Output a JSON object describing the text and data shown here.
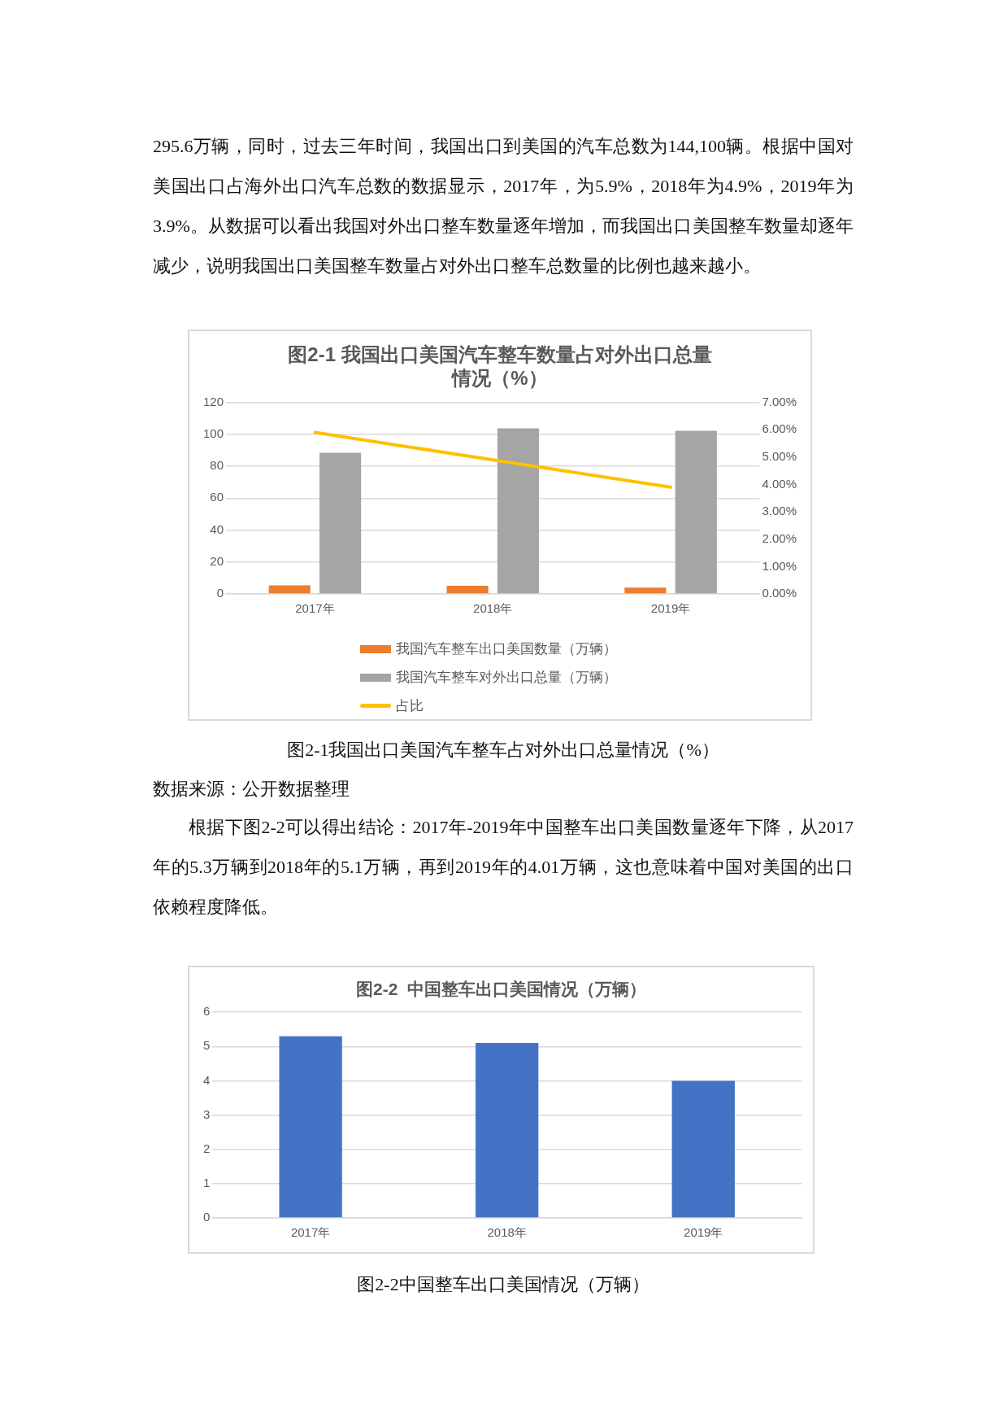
{
  "chart_data": [
    {
      "type": "bar",
      "title": "图2-1 我国出口美国汽车整车数量占对外出口总量情况（%）",
      "categories": [
        "2017年",
        "2018年",
        "2019年"
      ],
      "series": [
        {
          "name": "我国汽车整车出口美国数量（万辆）",
          "color": "#ed7d31",
          "values": [
            5.3,
            5.1,
            4.0
          ]
        },
        {
          "name": "我国汽车整车对外出口总量（万辆）",
          "color": "#a5a5a5",
          "values": [
            88.5,
            103.8,
            102.2
          ]
        },
        {
          "name": "占比",
          "type": "line",
          "axis": "y2",
          "color": "#ffc000",
          "values": [
            5.9,
            4.9,
            3.9
          ]
        }
      ],
      "ylim": [
        0,
        120
      ],
      "yticks": [
        0,
        20,
        40,
        60,
        80,
        100,
        120
      ],
      "y2lim": [
        0,
        7
      ],
      "y2ticks": [
        {
          "value": 0,
          "label": "0.00%"
        },
        {
          "value": 1,
          "label": "1.00%"
        },
        {
          "value": 2,
          "label": "2.00%"
        },
        {
          "value": 3,
          "label": "3.00%"
        },
        {
          "value": 4,
          "label": "4.00%"
        },
        {
          "value": 5,
          "label": "5.00%"
        },
        {
          "value": 6,
          "label": "6.00%"
        },
        {
          "value": 7,
          "label": "7.00%"
        }
      ],
      "grid": "y",
      "legend": "bottom",
      "marker": "none",
      "line_style": "solid",
      "annotations": [
        "295.6万辆，同时，过去三年时间，我国出口到美国的汽车总数为144,100辆。根据中国对美国出口占海外出口汽车总数的数据显示，2017年，为5.9%，2018年为4.9%，2019年为3.9%。从数据可以看出我国对外出口整车数量逐年增加，而我国出口美国整车数量却逐年减少，说明我国出口美国整车数量占对外出口整车总数量的比例也越来越小。",
        "图2-1我国出口美国汽车整车占对外出口总量情况（%）",
        "数据来源：公开数据整理",
        "根据下图2-2可以得出结论：2017年-2019年中国整车出口美国数量逐年下降，从2017年的5.3万辆到2018年的5.1万辆，再到2019年的4.01万辆，这也意味着中国对美国的出口依赖程度降低。"
      ]
    },
    {
      "type": "bar",
      "title": "图2-2  中国整车出口美国情况（万辆）",
      "categories": [
        "2017年",
        "2018年",
        "2019年"
      ],
      "values": [
        5.3,
        5.1,
        4.0
      ],
      "color": "#4472c4",
      "ylim": [
        0,
        6
      ],
      "yticks": [
        0,
        1,
        2,
        3,
        4,
        5,
        6
      ],
      "grid": "y",
      "annotations": [
        "图2-2中国整车出口美国情况（万辆）"
      ]
    }
  ]
}
